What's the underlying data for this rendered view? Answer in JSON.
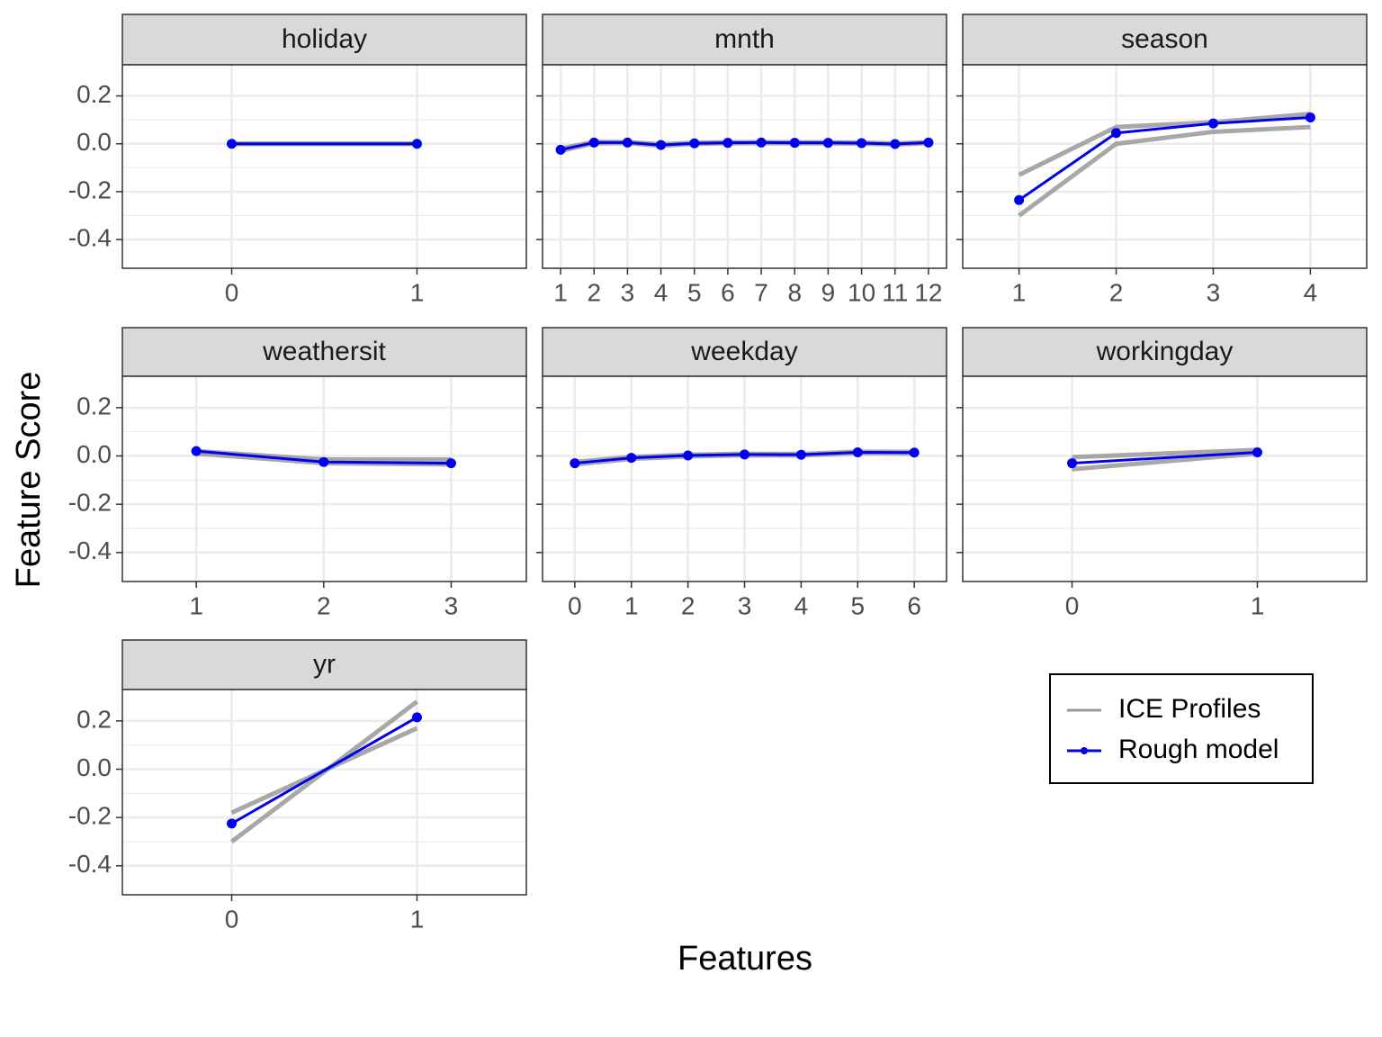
{
  "x_label": "Features",
  "y_label": "Feature Score",
  "chart_data": [
    {
      "type": "line",
      "title": "holiday",
      "x": [
        0,
        1
      ],
      "xlim": [
        -0.59,
        1.59
      ],
      "xticks": [
        0,
        1
      ],
      "ylim": [
        -0.52,
        0.33
      ],
      "yticks": [
        {
          "value": -0.4,
          "label": "-0.4"
        },
        {
          "value": -0.2,
          "label": "-0.2"
        },
        {
          "value": 0,
          "label": "0.0"
        },
        0.2
      ],
      "grid": true,
      "series": [
        {
          "name": "ICE Profiles",
          "color": "#999999",
          "values": [
            0,
            0
          ]
        },
        {
          "name": "ICE Profiles",
          "color": "#999999",
          "values": [
            0,
            0
          ]
        },
        {
          "name": "Rough model",
          "color": "#0000ee",
          "values": [
            0,
            0
          ]
        }
      ]
    },
    {
      "type": "line",
      "title": "mnth",
      "x": [
        1,
        2,
        3,
        4,
        5,
        6,
        7,
        8,
        9,
        10,
        11,
        12
      ],
      "xlim": [
        0.46,
        12.54
      ],
      "xticks": [
        1,
        2,
        3,
        4,
        5,
        6,
        7,
        8,
        9,
        10,
        11,
        12
      ],
      "ylim": [
        -0.52,
        0.33
      ],
      "yticks": [
        {
          "value": -0.4,
          "label": "-0.4"
        },
        {
          "value": -0.2,
          "label": "-0.2"
        },
        {
          "value": 0,
          "label": "0.0"
        },
        0.2
      ],
      "grid": true,
      "series": [
        {
          "name": "ICE Profiles",
          "color": "#999999",
          "values": [
            -0.02,
            0.008,
            0.007,
            -0.002,
            0.004,
            0.006,
            0.007,
            0.006,
            0.006,
            0.005,
            0.001,
            0.007
          ]
        },
        {
          "name": "ICE Profiles",
          "color": "#999999",
          "values": [
            -0.03,
            0.002,
            0.003,
            -0.008,
            0.0,
            0.002,
            0.003,
            0.002,
            0.002,
            0.001,
            -0.003,
            0.003
          ]
        },
        {
          "name": "Rough model",
          "color": "#0000ee",
          "values": [
            -0.025,
            0.005,
            0.005,
            -0.005,
            0.002,
            0.004,
            0.005,
            0.004,
            0.004,
            0.003,
            -0.001,
            0.005
          ]
        }
      ]
    },
    {
      "type": "line",
      "title": "season",
      "x": [
        1,
        2,
        3,
        4
      ],
      "xlim": [
        0.42,
        4.58
      ],
      "xticks": [
        1,
        2,
        3,
        4
      ],
      "ylim": [
        -0.52,
        0.33
      ],
      "yticks": [
        {
          "value": -0.4,
          "label": "-0.4"
        },
        {
          "value": -0.2,
          "label": "-0.2"
        },
        {
          "value": 0,
          "label": "0.0"
        },
        0.2
      ],
      "grid": true,
      "series": [
        {
          "name": "ICE Profiles",
          "color": "#999999",
          "values": [
            -0.13,
            0.07,
            0.09,
            0.125
          ]
        },
        {
          "name": "ICE Profiles",
          "color": "#999999",
          "values": [
            -0.3,
            0.0,
            0.05,
            0.07
          ]
        },
        {
          "name": "Rough model",
          "color": "#0000ee",
          "values": [
            -0.235,
            0.045,
            0.085,
            0.11
          ]
        }
      ]
    },
    {
      "type": "line",
      "title": "weathersit",
      "x": [
        1,
        2,
        3
      ],
      "xlim": [
        0.42,
        3.59
      ],
      "xticks": [
        1,
        2,
        3
      ],
      "ylim": [
        -0.52,
        0.33
      ],
      "yticks": [
        {
          "value": -0.4,
          "label": "-0.4"
        },
        {
          "value": -0.2,
          "label": "-0.2"
        },
        {
          "value": 0,
          "label": "0.0"
        },
        0.2
      ],
      "grid": true,
      "series": [
        {
          "name": "ICE Profiles",
          "color": "#999999",
          "values": [
            0.02,
            -0.015,
            -0.015
          ]
        },
        {
          "name": "ICE Profiles",
          "color": "#999999",
          "values": [
            0.01,
            -0.03,
            -0.035
          ]
        },
        {
          "name": "Rough model",
          "color": "#0000ee",
          "values": [
            0.02,
            -0.025,
            -0.03
          ]
        }
      ]
    },
    {
      "type": "line",
      "title": "weekday",
      "x": [
        0,
        1,
        2,
        3,
        4,
        5,
        6
      ],
      "xlim": [
        -0.57,
        6.57
      ],
      "xticks": [
        0,
        1,
        2,
        3,
        4,
        5,
        6
      ],
      "ylim": [
        -0.52,
        0.33
      ],
      "yticks": [
        {
          "value": -0.4,
          "label": "-0.4"
        },
        {
          "value": -0.2,
          "label": "-0.2"
        },
        {
          "value": 0,
          "label": "0.0"
        },
        0.2
      ],
      "grid": true,
      "series": [
        {
          "name": "ICE Profiles",
          "color": "#999999",
          "values": [
            -0.025,
            -0.004,
            0.005,
            0.009,
            0.008,
            0.018,
            0.017
          ]
        },
        {
          "name": "ICE Profiles",
          "color": "#999999",
          "values": [
            -0.035,
            -0.012,
            -0.002,
            0.003,
            0.002,
            0.012,
            0.011
          ]
        },
        {
          "name": "Rough model",
          "color": "#0000ee",
          "values": [
            -0.03,
            -0.008,
            0.002,
            0.006,
            0.005,
            0.015,
            0.014
          ]
        }
      ]
    },
    {
      "type": "line",
      "title": "workingday",
      "x": [
        0,
        1
      ],
      "xlim": [
        -0.59,
        1.59
      ],
      "xticks": [
        0,
        1
      ],
      "ylim": [
        -0.52,
        0.33
      ],
      "yticks": [
        {
          "value": -0.4,
          "label": "-0.4"
        },
        {
          "value": -0.2,
          "label": "-0.2"
        },
        {
          "value": 0,
          "label": "0.0"
        },
        0.2
      ],
      "grid": true,
      "series": [
        {
          "name": "ICE Profiles",
          "color": "#999999",
          "values": [
            -0.005,
            0.025
          ]
        },
        {
          "name": "ICE Profiles",
          "color": "#999999",
          "values": [
            -0.055,
            0.01
          ]
        },
        {
          "name": "Rough model",
          "color": "#0000ee",
          "values": [
            -0.03,
            0.015
          ]
        }
      ]
    },
    {
      "type": "line",
      "title": "yr",
      "x": [
        0,
        1
      ],
      "xlim": [
        -0.59,
        1.59
      ],
      "xticks": [
        0,
        1
      ],
      "ylim": [
        -0.52,
        0.33
      ],
      "yticks": [
        {
          "value": -0.4,
          "label": "-0.4"
        },
        {
          "value": -0.2,
          "label": "-0.2"
        },
        {
          "value": 0,
          "label": "0.0"
        },
        0.2
      ],
      "grid": true,
      "series": [
        {
          "name": "ICE Profiles",
          "color": "#999999",
          "values": [
            -0.18,
            0.17
          ]
        },
        {
          "name": "ICE Profiles",
          "color": "#999999",
          "values": [
            -0.3,
            0.28
          ]
        },
        {
          "name": "Rough model",
          "color": "#0000ee",
          "values": [
            -0.225,
            0.215
          ]
        }
      ]
    }
  ]
}
